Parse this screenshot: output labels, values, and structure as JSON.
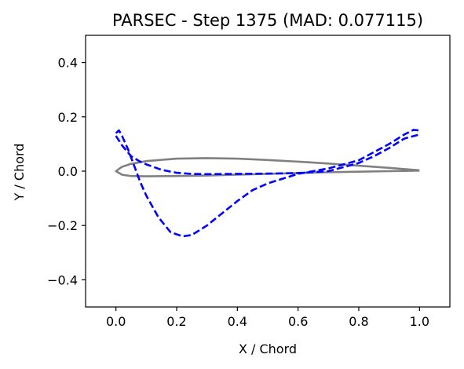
{
  "chart_data": {
    "type": "line",
    "title": "PARSEC - Step 1375 (MAD: 0.077115)",
    "xlabel": "X / Chord",
    "ylabel": "Y / Chord",
    "xlim": [
      -0.1,
      1.1
    ],
    "ylim": [
      -0.5,
      0.5
    ],
    "xticks": [
      "0.0",
      "0.2",
      "0.4",
      "0.6",
      "0.8",
      "1.0"
    ],
    "xtick_values": [
      0.0,
      0.2,
      0.4,
      0.6,
      0.8,
      1.0
    ],
    "yticks": [
      "−0.4",
      "−0.2",
      "0.0",
      "0.2",
      "0.4"
    ],
    "ytick_values": [
      -0.4,
      -0.2,
      0.0,
      0.2,
      0.4
    ],
    "grid": false,
    "series": [
      {
        "color": "#808080",
        "style": "solid",
        "x": [
          1.0,
          0.9,
          0.8,
          0.7,
          0.6,
          0.5,
          0.4,
          0.3,
          0.2,
          0.1,
          0.05,
          0.02,
          0.0,
          0.02,
          0.05,
          0.1,
          0.2,
          0.3,
          0.4,
          0.5,
          0.6,
          0.7,
          0.8,
          0.9,
          1.0
        ],
        "y": [
          0.003,
          0.012,
          0.02,
          0.028,
          0.035,
          0.041,
          0.046,
          0.048,
          0.046,
          0.037,
          0.027,
          0.016,
          0.0,
          -0.013,
          -0.018,
          -0.019,
          -0.018,
          -0.016,
          -0.013,
          -0.01,
          -0.007,
          -0.004,
          -0.002,
          0.0,
          0.002
        ]
      },
      {
        "color": "#0000ff",
        "style": "dashed",
        "x": [
          0.0,
          0.02,
          0.05,
          0.08,
          0.1,
          0.15,
          0.2,
          0.25,
          0.3,
          0.4,
          0.5,
          0.6,
          0.7,
          0.8,
          0.85,
          0.9,
          0.95,
          1.0
        ],
        "y": [
          0.13,
          0.095,
          0.055,
          0.035,
          0.025,
          0.005,
          -0.006,
          -0.01,
          -0.011,
          -0.01,
          -0.009,
          -0.007,
          0.0,
          0.03,
          0.055,
          0.085,
          0.12,
          0.135
        ]
      },
      {
        "color": "#0000ff",
        "style": "dashed",
        "x": [
          0.0,
          0.01,
          0.02,
          0.04,
          0.06,
          0.08,
          0.1,
          0.14,
          0.18,
          0.22,
          0.25,
          0.3,
          0.35,
          0.4,
          0.45,
          0.5,
          0.6,
          0.7,
          0.8,
          0.85,
          0.9,
          0.95,
          0.98,
          1.0
        ],
        "y": [
          0.14,
          0.15,
          0.13,
          0.08,
          0.02,
          -0.04,
          -0.09,
          -0.17,
          -0.225,
          -0.24,
          -0.235,
          -0.2,
          -0.155,
          -0.11,
          -0.07,
          -0.045,
          -0.01,
          0.01,
          0.04,
          0.07,
          0.1,
          0.135,
          0.152,
          0.15
        ]
      }
    ]
  }
}
